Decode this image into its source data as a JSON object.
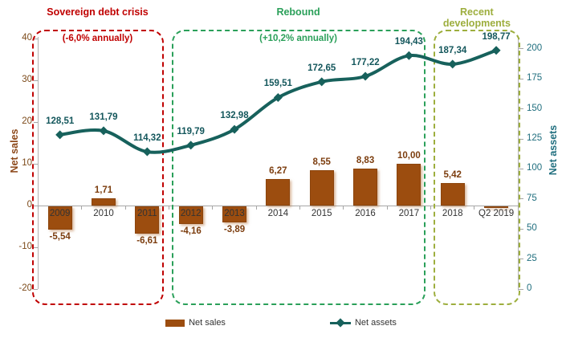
{
  "chart_data": {
    "type": "combo-bar-line",
    "categories": [
      "2009",
      "2010",
      "2011",
      "2012",
      "2013",
      "2014",
      "2015",
      "2016",
      "2017",
      "2018",
      "Q2 2019"
    ],
    "series": [
      {
        "name": "Net sales",
        "type": "bar",
        "axis": "left",
        "color": "#9c4d0f",
        "values": [
          -5.54,
          1.71,
          -6.61,
          -4.16,
          -3.89,
          6.27,
          8.55,
          8.83,
          10.0,
          5.42,
          -0.4
        ],
        "labels": [
          "-5,54",
          "1,71",
          "-6,61",
          "-4,16",
          "-3,89",
          "6,27",
          "8,55",
          "8,83",
          "10,00",
          "5,42",
          ""
        ]
      },
      {
        "name": "Net assets",
        "type": "line",
        "axis": "right",
        "color": "#17615c",
        "values": [
          128.51,
          131.79,
          114.32,
          119.79,
          132.98,
          159.51,
          172.65,
          177.22,
          194.43,
          187.34,
          198.77
        ],
        "labels": [
          "128,51",
          "131,79",
          "114,32",
          "119,79",
          "132,98",
          "159,51",
          "172,65",
          "177,22",
          "194,43",
          "187,34",
          "198,77"
        ]
      }
    ],
    "left_axis": {
      "title": "Net sales",
      "min": -20,
      "max": 40,
      "step": 10,
      "tick_color": "#7c4a1a",
      "title_color": "#8c4718"
    },
    "right_axis": {
      "title": "Net assets",
      "min": 0,
      "max": 200,
      "step": 25,
      "tick_color": "#1f6e7e",
      "title_color": "#1f6e7e"
    },
    "regions": [
      {
        "title": "Sovereign debt crisis",
        "subtitle": "(-6,0% annually)",
        "color": "#c00000",
        "from": 0,
        "to": 2
      },
      {
        "title": "Rebound",
        "subtitle": "(+10,2% annually)",
        "color": "#2ba05a",
        "from": 3,
        "to": 8
      },
      {
        "title": "Recent developments",
        "subtitle": "",
        "color": "#9dae3d",
        "from": 9,
        "to": 10
      }
    ],
    "legend_position": "bottom",
    "grid": "zero-line-only"
  }
}
